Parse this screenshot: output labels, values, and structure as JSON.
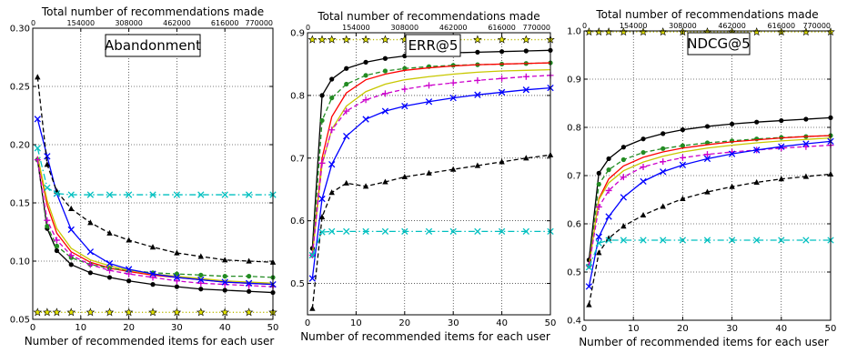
{
  "chart_data": [
    {
      "type": "line",
      "title": "Abandonment",
      "xlabel": "Number of recommended items for each user",
      "top_xlabel": "Total number of recommendations made",
      "top_ticks": [
        "0",
        "154000",
        "308000",
        "462000",
        "616000",
        "770000"
      ],
      "xlim": [
        0,
        50
      ],
      "ylim": [
        0.05,
        0.3
      ],
      "xticks": [
        0,
        10,
        20,
        30,
        40,
        50
      ],
      "yticks": [
        0.05,
        0.1,
        0.15,
        0.2,
        0.25,
        0.3
      ],
      "ytick_labels": [
        "0.05",
        "0.10",
        "0.15",
        "0.20",
        "0.25",
        "0.30"
      ],
      "grid": true,
      "series": [
        {
          "color": "#ff0000",
          "linestyle": "solid",
          "marker": "none",
          "x": [
            1,
            3,
            5,
            8,
            12,
            16,
            20,
            25,
            30,
            35,
            40,
            45,
            50
          ],
          "y": [
            0.19,
            0.148,
            0.124,
            0.108,
            0.099,
            0.094,
            0.091,
            0.088,
            0.086,
            0.084,
            0.082,
            0.081,
            0.08
          ]
        },
        {
          "color": "#000000",
          "linestyle": "solid",
          "marker": "circle",
          "x": [
            1,
            3,
            5,
            8,
            12,
            16,
            20,
            25,
            30,
            35,
            40,
            45,
            50
          ],
          "y": [
            0.187,
            0.128,
            0.109,
            0.097,
            0.09,
            0.086,
            0.083,
            0.08,
            0.078,
            0.076,
            0.075,
            0.074,
            0.073
          ]
        },
        {
          "color": "#228b22",
          "linestyle": "dashed",
          "marker": "circle",
          "x": [
            1,
            3,
            5,
            8,
            12,
            16,
            20,
            25,
            30,
            35,
            40,
            45,
            50
          ],
          "y": [
            0.187,
            0.13,
            0.113,
            0.103,
            0.097,
            0.094,
            0.092,
            0.09,
            0.089,
            0.088,
            0.087,
            0.087,
            0.086
          ]
        },
        {
          "color": "#c8c800",
          "linestyle": "solid",
          "marker": "none",
          "x": [
            1,
            3,
            5,
            8,
            12,
            16,
            20,
            25,
            30,
            35,
            40,
            45,
            50
          ],
          "y": [
            0.19,
            0.152,
            0.128,
            0.111,
            0.101,
            0.096,
            0.092,
            0.089,
            0.087,
            0.085,
            0.083,
            0.082,
            0.081
          ]
        },
        {
          "color": "#cc00cc",
          "linestyle": "dashed",
          "marker": "plus",
          "x": [
            1,
            3,
            5,
            8,
            12,
            16,
            20,
            25,
            30,
            35,
            40,
            45,
            50
          ],
          "y": [
            0.187,
            0.135,
            0.118,
            0.105,
            0.097,
            0.092,
            0.089,
            0.086,
            0.083,
            0.081,
            0.08,
            0.079,
            0.078
          ]
        },
        {
          "color": "#0000ff",
          "linestyle": "solid",
          "marker": "x",
          "x": [
            1,
            3,
            5,
            8,
            12,
            16,
            20,
            25,
            30,
            35,
            40,
            45,
            50
          ],
          "y": [
            0.222,
            0.19,
            0.158,
            0.127,
            0.108,
            0.098,
            0.093,
            0.089,
            0.086,
            0.084,
            0.082,
            0.081,
            0.08
          ]
        },
        {
          "color": "#000000",
          "linestyle": "dashed",
          "marker": "triangle",
          "x": [
            1,
            3,
            5,
            8,
            12,
            16,
            20,
            25,
            30,
            35,
            40,
            45,
            50
          ],
          "y": [
            0.258,
            0.183,
            0.16,
            0.145,
            0.133,
            0.124,
            0.118,
            0.112,
            0.107,
            0.104,
            0.101,
            0.1,
            0.099
          ]
        },
        {
          "color": "#00c0c0",
          "linestyle": "dashdot",
          "marker": "x",
          "x": [
            1,
            3,
            5,
            8,
            12,
            16,
            20,
            25,
            30,
            35,
            40,
            45,
            50
          ],
          "y": [
            0.197,
            0.163,
            0.158,
            0.157,
            0.157,
            0.157,
            0.157,
            0.157,
            0.157,
            0.157,
            0.157,
            0.157,
            0.157
          ]
        },
        {
          "color": "#bbbb00",
          "linestyle": "dotted",
          "marker": "star",
          "x": [
            1,
            3,
            5,
            8,
            12,
            16,
            20,
            25,
            30,
            35,
            40,
            45,
            50
          ],
          "y": [
            0.056,
            0.056,
            0.056,
            0.056,
            0.056,
            0.056,
            0.056,
            0.056,
            0.056,
            0.056,
            0.056,
            0.056,
            0.056
          ]
        }
      ]
    },
    {
      "type": "line",
      "title": "ERR@5",
      "xlabel": "Number of recommended items for each user",
      "top_xlabel": "Total number of recommendations made",
      "top_ticks": [
        "0",
        "154000",
        "308000",
        "462000",
        "616000",
        "770000"
      ],
      "xlim": [
        0,
        50
      ],
      "ylim": [
        0.45,
        0.9
      ],
      "xticks": [
        0,
        10,
        20,
        30,
        40,
        50
      ],
      "yticks": [
        0.5,
        0.6,
        0.7,
        0.8,
        0.9
      ],
      "ytick_labels": [
        "0.5",
        "0.6",
        "0.7",
        "0.8",
        "0.9"
      ],
      "grid": true,
      "series": [
        {
          "color": "#000000",
          "linestyle": "solid",
          "marker": "circle",
          "x": [
            1,
            3,
            5,
            8,
            12,
            16,
            20,
            25,
            30,
            35,
            40,
            45,
            50
          ],
          "y": [
            0.556,
            0.8,
            0.826,
            0.843,
            0.853,
            0.859,
            0.863,
            0.866,
            0.868,
            0.869,
            0.87,
            0.871,
            0.872
          ]
        },
        {
          "color": "#228b22",
          "linestyle": "dashed",
          "marker": "circle",
          "x": [
            1,
            3,
            5,
            8,
            12,
            16,
            20,
            25,
            30,
            35,
            40,
            45,
            50
          ],
          "y": [
            0.545,
            0.76,
            0.796,
            0.818,
            0.832,
            0.839,
            0.843,
            0.846,
            0.848,
            0.849,
            0.85,
            0.851,
            0.852
          ]
        },
        {
          "color": "#ff0000",
          "linestyle": "solid",
          "marker": "none",
          "x": [
            1,
            3,
            5,
            8,
            12,
            16,
            20,
            25,
            30,
            35,
            40,
            45,
            50
          ],
          "y": [
            0.545,
            0.7,
            0.766,
            0.804,
            0.825,
            0.834,
            0.84,
            0.844,
            0.847,
            0.849,
            0.85,
            0.851,
            0.852
          ]
        },
        {
          "color": "#c8c800",
          "linestyle": "solid",
          "marker": "none",
          "x": [
            1,
            3,
            5,
            8,
            12,
            16,
            20,
            25,
            30,
            35,
            40,
            45,
            50
          ],
          "y": [
            0.545,
            0.69,
            0.746,
            0.783,
            0.806,
            0.818,
            0.825,
            0.83,
            0.834,
            0.837,
            0.839,
            0.84,
            0.841
          ]
        },
        {
          "color": "#cc00cc",
          "linestyle": "dashed",
          "marker": "plus",
          "x": [
            1,
            3,
            5,
            8,
            12,
            16,
            20,
            25,
            30,
            35,
            40,
            45,
            50
          ],
          "y": [
            0.545,
            0.692,
            0.745,
            0.775,
            0.793,
            0.803,
            0.81,
            0.816,
            0.82,
            0.824,
            0.827,
            0.83,
            0.832
          ]
        },
        {
          "color": "#0000ff",
          "linestyle": "solid",
          "marker": "x",
          "x": [
            1,
            3,
            5,
            8,
            12,
            16,
            20,
            25,
            30,
            35,
            40,
            45,
            50
          ],
          "y": [
            0.508,
            0.635,
            0.69,
            0.735,
            0.762,
            0.775,
            0.783,
            0.79,
            0.796,
            0.801,
            0.805,
            0.809,
            0.812
          ]
        },
        {
          "color": "#000000",
          "linestyle": "dashed",
          "marker": "triangle",
          "x": [
            1,
            3,
            5,
            8,
            12,
            16,
            20,
            25,
            30,
            35,
            40,
            45,
            50
          ],
          "y": [
            0.46,
            0.606,
            0.645,
            0.66,
            0.655,
            0.662,
            0.67,
            0.676,
            0.682,
            0.688,
            0.694,
            0.7,
            0.705
          ]
        },
        {
          "color": "#00c0c0",
          "linestyle": "dashdot",
          "marker": "x",
          "x": [
            1,
            3,
            5,
            8,
            12,
            16,
            20,
            25,
            30,
            35,
            40,
            45,
            50
          ],
          "y": [
            0.545,
            0.582,
            0.583,
            0.583,
            0.583,
            0.583,
            0.583,
            0.583,
            0.583,
            0.583,
            0.583,
            0.583,
            0.583
          ]
        },
        {
          "color": "#bbbb00",
          "linestyle": "dotted",
          "marker": "star",
          "x": [
            1,
            3,
            5,
            8,
            12,
            16,
            20,
            25,
            30,
            35,
            40,
            45,
            50
          ],
          "y": [
            0.889,
            0.889,
            0.889,
            0.889,
            0.889,
            0.889,
            0.889,
            0.889,
            0.889,
            0.889,
            0.889,
            0.889,
            0.889
          ]
        }
      ]
    },
    {
      "type": "line",
      "title": "NDCG@5",
      "xlabel": "Number of recommended items for each user",
      "top_xlabel": "Total number of recommendations made",
      "top_ticks": [
        "0",
        "154000",
        "308000",
        "462000",
        "616000",
        "770000"
      ],
      "xlim": [
        0,
        50
      ],
      "ylim": [
        0.4,
        1.0
      ],
      "xticks": [
        0,
        10,
        20,
        30,
        40,
        50
      ],
      "yticks": [
        0.4,
        0.5,
        0.6,
        0.7,
        0.8,
        0.9,
        1.0
      ],
      "ytick_labels": [
        "0.4",
        "0.5",
        "0.6",
        "0.7",
        "0.8",
        "0.9",
        "1.0"
      ],
      "grid": true,
      "series": [
        {
          "color": "#000000",
          "linestyle": "solid",
          "marker": "circle",
          "x": [
            1,
            3,
            5,
            8,
            12,
            16,
            20,
            25,
            30,
            35,
            40,
            45,
            50
          ],
          "y": [
            0.525,
            0.705,
            0.735,
            0.759,
            0.776,
            0.787,
            0.795,
            0.802,
            0.807,
            0.811,
            0.814,
            0.817,
            0.82
          ]
        },
        {
          "color": "#228b22",
          "linestyle": "dashed",
          "marker": "circle",
          "x": [
            1,
            3,
            5,
            8,
            12,
            16,
            20,
            25,
            30,
            35,
            40,
            45,
            50
          ],
          "y": [
            0.513,
            0.682,
            0.712,
            0.733,
            0.748,
            0.756,
            0.762,
            0.768,
            0.772,
            0.776,
            0.779,
            0.781,
            0.783
          ]
        },
        {
          "color": "#ff0000",
          "linestyle": "solid",
          "marker": "none",
          "x": [
            1,
            3,
            5,
            8,
            12,
            16,
            20,
            25,
            30,
            35,
            40,
            45,
            50
          ],
          "y": [
            0.513,
            0.652,
            0.693,
            0.72,
            0.738,
            0.749,
            0.757,
            0.764,
            0.77,
            0.774,
            0.778,
            0.781,
            0.783
          ]
        },
        {
          "color": "#c8c800",
          "linestyle": "solid",
          "marker": "none",
          "x": [
            1,
            3,
            5,
            8,
            12,
            16,
            20,
            25,
            30,
            35,
            40,
            45,
            50
          ],
          "y": [
            0.513,
            0.65,
            0.685,
            0.71,
            0.728,
            0.74,
            0.749,
            0.757,
            0.763,
            0.768,
            0.772,
            0.775,
            0.778
          ]
        },
        {
          "color": "#cc00cc",
          "linestyle": "dashed",
          "marker": "plus",
          "x": [
            1,
            3,
            5,
            8,
            12,
            16,
            20,
            25,
            30,
            35,
            40,
            45,
            50
          ],
          "y": [
            0.513,
            0.635,
            0.669,
            0.697,
            0.718,
            0.729,
            0.737,
            0.744,
            0.749,
            0.753,
            0.757,
            0.76,
            0.763
          ]
        },
        {
          "color": "#0000ff",
          "linestyle": "solid",
          "marker": "x",
          "x": [
            1,
            3,
            5,
            8,
            12,
            16,
            20,
            25,
            30,
            35,
            40,
            45,
            50
          ],
          "y": [
            0.47,
            0.573,
            0.615,
            0.655,
            0.688,
            0.708,
            0.722,
            0.735,
            0.745,
            0.753,
            0.76,
            0.766,
            0.771
          ]
        },
        {
          "color": "#000000",
          "linestyle": "dashed",
          "marker": "triangle",
          "x": [
            1,
            3,
            5,
            8,
            12,
            16,
            20,
            25,
            30,
            35,
            40,
            45,
            50
          ],
          "y": [
            0.432,
            0.54,
            0.57,
            0.595,
            0.618,
            0.636,
            0.652,
            0.666,
            0.677,
            0.686,
            0.693,
            0.698,
            0.703
          ]
        },
        {
          "color": "#00c0c0",
          "linestyle": "dashdot",
          "marker": "x",
          "x": [
            1,
            3,
            5,
            8,
            12,
            16,
            20,
            25,
            30,
            35,
            40,
            45,
            50
          ],
          "y": [
            0.51,
            0.56,
            0.566,
            0.566,
            0.566,
            0.566,
            0.566,
            0.566,
            0.566,
            0.566,
            0.566,
            0.566,
            0.566
          ]
        },
        {
          "color": "#bbbb00",
          "linestyle": "dotted",
          "marker": "star",
          "x": [
            1,
            3,
            5,
            8,
            12,
            16,
            20,
            25,
            30,
            35,
            40,
            45,
            50
          ],
          "y": [
            0.998,
            0.998,
            0.998,
            0.998,
            0.998,
            0.998,
            0.998,
            0.998,
            0.998,
            0.998,
            0.998,
            0.998,
            0.998
          ]
        }
      ]
    }
  ]
}
